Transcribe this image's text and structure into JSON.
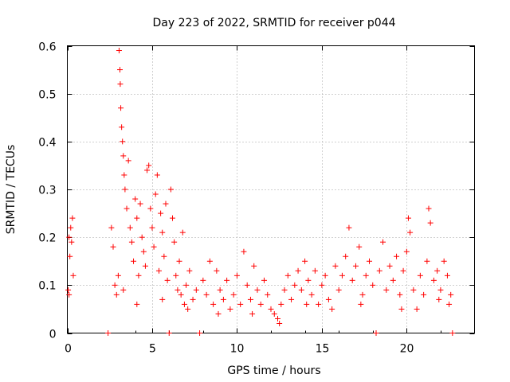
{
  "chart_data": {
    "type": "scatter",
    "title": "Day 223 of 2022, SRMTID for receiver p044",
    "xlabel": "GPS time / hours",
    "ylabel": "SRMTID / TECUs",
    "xlim": [
      0,
      24
    ],
    "ylim": [
      0,
      0.6
    ],
    "xticks": [
      0,
      5,
      10,
      15,
      20
    ],
    "yticks": [
      0,
      0.1,
      0.2,
      0.3,
      0.4,
      0.5,
      0.6
    ],
    "xtick_labels": [
      "0",
      "5",
      "10",
      "15",
      "20"
    ],
    "ytick_labels": [
      "0",
      "0.1",
      "0.2",
      "0.3",
      "0.4",
      "0.5",
      "0.6"
    ],
    "grid": true,
    "marker": "+",
    "color": "#ff0000",
    "series": [
      {
        "name": "SRMTID",
        "points": [
          [
            0.05,
            0.09
          ],
          [
            0.1,
            0.2
          ],
          [
            0.15,
            0.16
          ],
          [
            0.2,
            0.22
          ],
          [
            0.25,
            0.19
          ],
          [
            0.3,
            0.24
          ],
          [
            0.35,
            0.12
          ],
          [
            0.1,
            0.08
          ],
          [
            2.4,
            0.0
          ],
          [
            2.6,
            0.22
          ],
          [
            2.7,
            0.18
          ],
          [
            2.8,
            0.1
          ],
          [
            2.9,
            0.08
          ],
          [
            3.0,
            0.12
          ],
          [
            3.05,
            0.59
          ],
          [
            3.1,
            0.55
          ],
          [
            3.12,
            0.52
          ],
          [
            3.15,
            0.47
          ],
          [
            3.2,
            0.43
          ],
          [
            3.25,
            0.4
          ],
          [
            3.3,
            0.37
          ],
          [
            3.35,
            0.33
          ],
          [
            3.4,
            0.3
          ],
          [
            3.5,
            0.26
          ],
          [
            3.6,
            0.36
          ],
          [
            3.7,
            0.22
          ],
          [
            3.8,
            0.19
          ],
          [
            3.9,
            0.15
          ],
          [
            4.0,
            0.28
          ],
          [
            4.1,
            0.24
          ],
          [
            4.2,
            0.12
          ],
          [
            4.3,
            0.27
          ],
          [
            4.4,
            0.2
          ],
          [
            4.5,
            0.17
          ],
          [
            4.6,
            0.14
          ],
          [
            4.7,
            0.34
          ],
          [
            4.8,
            0.35
          ],
          [
            4.9,
            0.26
          ],
          [
            5.0,
            0.22
          ],
          [
            5.1,
            0.18
          ],
          [
            5.2,
            0.29
          ],
          [
            5.3,
            0.33
          ],
          [
            5.4,
            0.13
          ],
          [
            5.5,
            0.25
          ],
          [
            5.6,
            0.21
          ],
          [
            5.7,
            0.16
          ],
          [
            5.8,
            0.27
          ],
          [
            5.9,
            0.11
          ],
          [
            6.0,
            0.0
          ],
          [
            6.1,
            0.3
          ],
          [
            6.2,
            0.24
          ],
          [
            6.3,
            0.19
          ],
          [
            6.4,
            0.12
          ],
          [
            6.5,
            0.09
          ],
          [
            6.6,
            0.15
          ],
          [
            6.7,
            0.08
          ],
          [
            6.8,
            0.21
          ],
          [
            6.9,
            0.06
          ],
          [
            7.0,
            0.1
          ],
          [
            7.2,
            0.13
          ],
          [
            7.4,
            0.07
          ],
          [
            7.6,
            0.09
          ],
          [
            7.8,
            0.0
          ],
          [
            8.0,
            0.11
          ],
          [
            8.2,
            0.08
          ],
          [
            8.4,
            0.15
          ],
          [
            8.6,
            0.06
          ],
          [
            8.8,
            0.13
          ],
          [
            9.0,
            0.09
          ],
          [
            9.2,
            0.07
          ],
          [
            9.4,
            0.11
          ],
          [
            9.6,
            0.05
          ],
          [
            9.8,
            0.08
          ],
          [
            10.0,
            0.12
          ],
          [
            10.2,
            0.06
          ],
          [
            10.4,
            0.17
          ],
          [
            10.6,
            0.1
          ],
          [
            10.8,
            0.07
          ],
          [
            11.0,
            0.14
          ],
          [
            11.2,
            0.09
          ],
          [
            11.4,
            0.06
          ],
          [
            11.6,
            0.11
          ],
          [
            11.8,
            0.08
          ],
          [
            12.0,
            0.05
          ],
          [
            12.2,
            0.04
          ],
          [
            12.4,
            0.03
          ],
          [
            12.6,
            0.06
          ],
          [
            12.8,
            0.09
          ],
          [
            13.0,
            0.12
          ],
          [
            13.2,
            0.07
          ],
          [
            13.4,
            0.1
          ],
          [
            13.6,
            0.13
          ],
          [
            13.8,
            0.09
          ],
          [
            14.0,
            0.15
          ],
          [
            14.2,
            0.11
          ],
          [
            14.4,
            0.08
          ],
          [
            14.6,
            0.13
          ],
          [
            14.8,
            0.06
          ],
          [
            15.0,
            0.1
          ],
          [
            15.2,
            0.12
          ],
          [
            15.4,
            0.07
          ],
          [
            15.6,
            0.05
          ],
          [
            15.8,
            0.14
          ],
          [
            16.0,
            0.09
          ],
          [
            16.2,
            0.12
          ],
          [
            16.4,
            0.16
          ],
          [
            16.6,
            0.22
          ],
          [
            16.8,
            0.11
          ],
          [
            17.0,
            0.14
          ],
          [
            17.2,
            0.18
          ],
          [
            17.4,
            0.08
          ],
          [
            17.6,
            0.12
          ],
          [
            17.8,
            0.15
          ],
          [
            18.0,
            0.1
          ],
          [
            18.2,
            0.0
          ],
          [
            18.4,
            0.13
          ],
          [
            18.6,
            0.19
          ],
          [
            18.8,
            0.09
          ],
          [
            19.0,
            0.14
          ],
          [
            19.2,
            0.11
          ],
          [
            19.4,
            0.16
          ],
          [
            19.6,
            0.08
          ],
          [
            19.8,
            0.13
          ],
          [
            20.0,
            0.17
          ],
          [
            20.1,
            0.24
          ],
          [
            20.2,
            0.21
          ],
          [
            20.4,
            0.09
          ],
          [
            20.6,
            0.05
          ],
          [
            20.8,
            0.12
          ],
          [
            21.0,
            0.08
          ],
          [
            21.2,
            0.15
          ],
          [
            21.3,
            0.26
          ],
          [
            21.4,
            0.23
          ],
          [
            21.6,
            0.11
          ],
          [
            21.8,
            0.13
          ],
          [
            22.0,
            0.09
          ],
          [
            22.2,
            0.15
          ],
          [
            22.4,
            0.12
          ],
          [
            22.5,
            0.06
          ],
          [
            22.6,
            0.08
          ],
          [
            22.7,
            0.0
          ],
          [
            3.3,
            0.09
          ],
          [
            4.1,
            0.06
          ],
          [
            5.6,
            0.07
          ],
          [
            7.1,
            0.05
          ],
          [
            8.9,
            0.04
          ],
          [
            10.9,
            0.04
          ],
          [
            12.5,
            0.02
          ],
          [
            14.1,
            0.06
          ],
          [
            17.3,
            0.06
          ],
          [
            19.7,
            0.05
          ],
          [
            21.9,
            0.07
          ]
        ]
      }
    ]
  }
}
